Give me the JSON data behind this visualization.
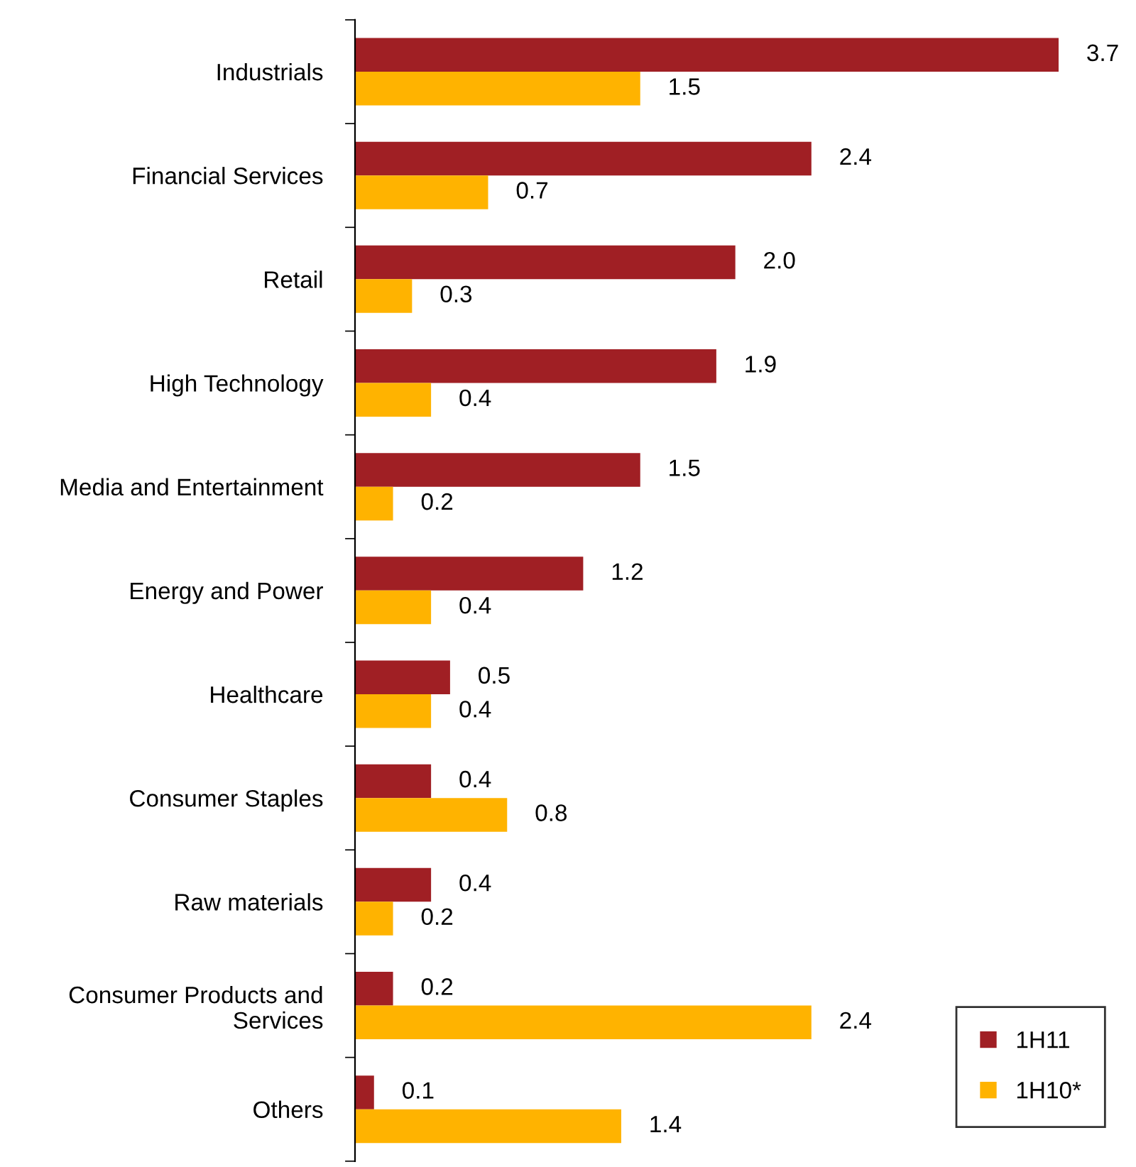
{
  "chart_data": {
    "type": "bar",
    "orientation": "horizontal",
    "categories": [
      "Industrials",
      "Financial Services",
      "Retail",
      "High Technology",
      "Media and Entertainment",
      "Energy and Power",
      "Healthcare",
      "Consumer Staples",
      "Raw materials",
      "Consumer Products and\nServices",
      "Others"
    ],
    "series": [
      {
        "name": "1H11",
        "color": "#a01f24",
        "values": [
          3.7,
          2.4,
          2.0,
          1.9,
          1.5,
          1.2,
          0.5,
          0.4,
          0.4,
          0.2,
          0.1
        ],
        "value_labels": [
          "3.7",
          "2.4",
          "2.0",
          "1.9",
          "1.5",
          "1.2",
          "0.5",
          "0.4",
          "0.4",
          "0.2",
          "0.1"
        ]
      },
      {
        "name": "1H10*",
        "color": "#ffb300",
        "values": [
          1.5,
          0.7,
          0.3,
          0.4,
          0.2,
          0.4,
          0.4,
          0.8,
          0.2,
          2.4,
          1.4
        ],
        "value_labels": [
          "1.5",
          "0.7",
          "0.3",
          "0.4",
          "0.2",
          "0.4",
          "0.4",
          "0.8",
          "0.2",
          "2.4",
          "1.4"
        ]
      }
    ],
    "legend": "bottom right",
    "grid": false
  }
}
